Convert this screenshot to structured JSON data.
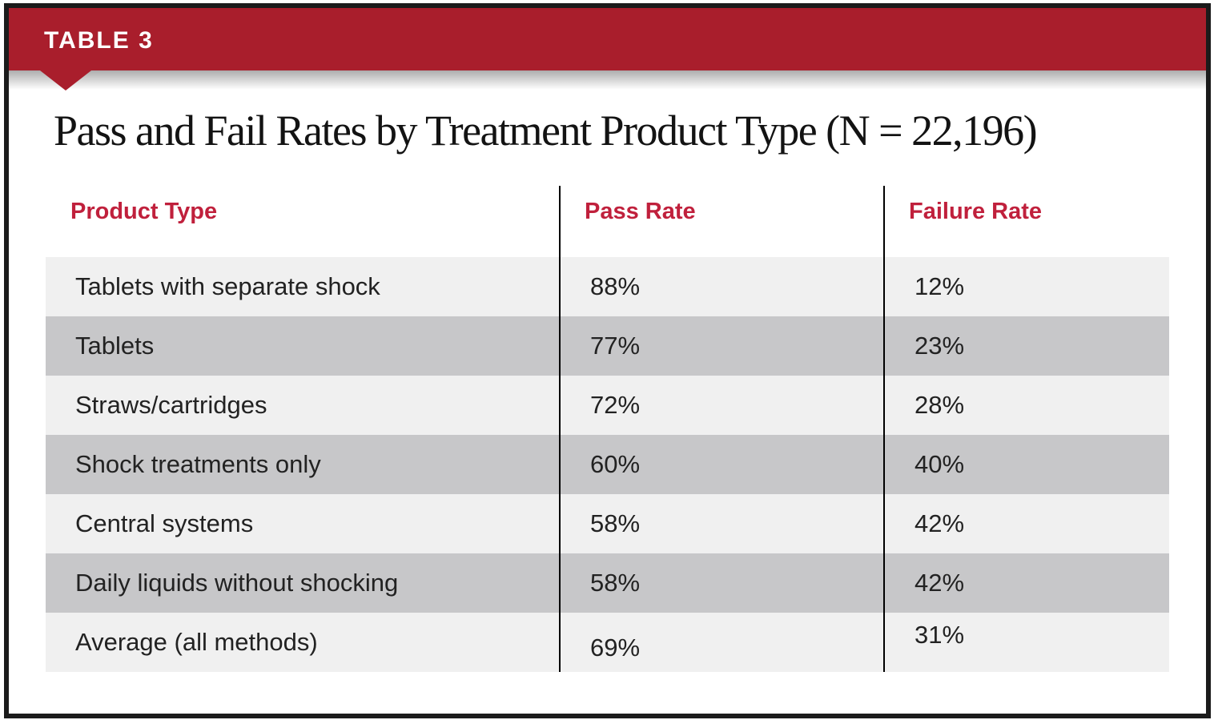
{
  "badge": {
    "label": "TABLE 3"
  },
  "title": "Pass and Fail Rates by Treatment Product Type (N = 22,196)",
  "table": {
    "columns": {
      "product": "Product Type",
      "pass": "Pass Rate",
      "fail": "Failure Rate"
    },
    "rows": [
      {
        "product": "Tablets with separate shock",
        "pass": "88%",
        "fail": "12%"
      },
      {
        "product": "Tablets",
        "pass": "77%",
        "fail": "23%"
      },
      {
        "product": "Straws/cartridges",
        "pass": "72%",
        "fail": "28%"
      },
      {
        "product": "Shock treatments only",
        "pass": "60%",
        "fail": "40%"
      },
      {
        "product": "Central systems",
        "pass": "58%",
        "fail": "42%"
      },
      {
        "product": "Daily liquids without shocking",
        "pass": "58%",
        "fail": "42%"
      },
      {
        "product": "Average (all methods)",
        "pass": "69%",
        "fail": "31%"
      }
    ]
  },
  "chart_data": {
    "type": "table",
    "title": "Pass and Fail Rates by Treatment Product Type (N = 22,196)",
    "n_total": 22196,
    "columns": [
      "Product Type",
      "Pass Rate",
      "Failure Rate"
    ],
    "rows": [
      [
        "Tablets with separate shock",
        "88%",
        "12%"
      ],
      [
        "Tablets",
        "77%",
        "23%"
      ],
      [
        "Straws/cartridges",
        "72%",
        "28%"
      ],
      [
        "Shock treatments only",
        "60%",
        "40%"
      ],
      [
        "Central systems",
        "58%",
        "42%"
      ],
      [
        "Daily liquids without shocking",
        "58%",
        "42%"
      ],
      [
        "Average (all methods)",
        "69%",
        "31%"
      ]
    ],
    "pass_rate_values": [
      88,
      77,
      72,
      60,
      58,
      58,
      69
    ],
    "failure_rate_values": [
      12,
      23,
      28,
      40,
      42,
      42,
      31
    ]
  },
  "colors": {
    "banner_red": "#a91e2c",
    "header_red": "#c0203c",
    "row_light": "#f0f0f0",
    "row_dark": "#c7c7c9",
    "frame_black": "#1b1b1b"
  }
}
